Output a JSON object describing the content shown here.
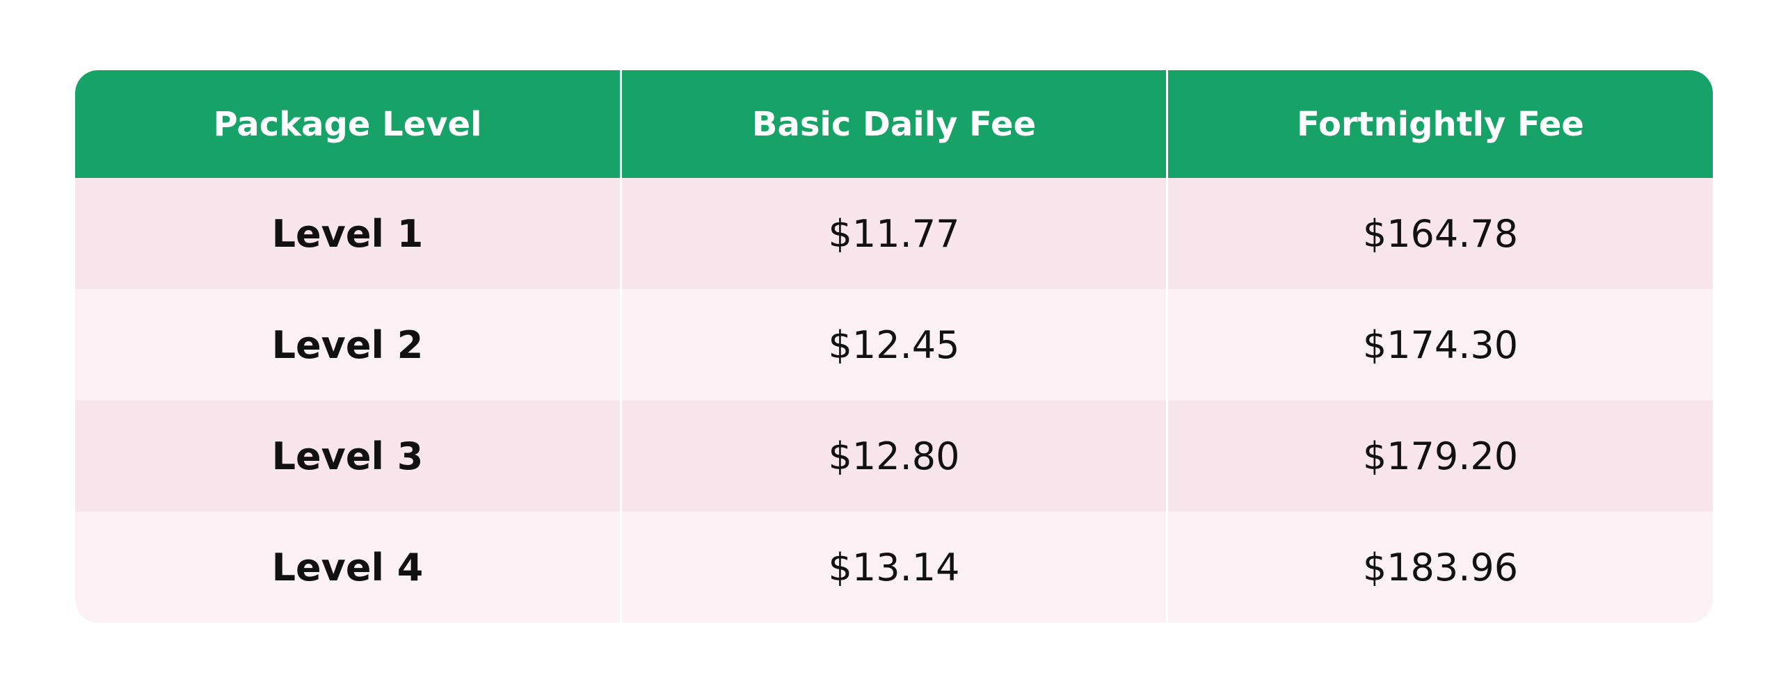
{
  "table": {
    "header": [
      "Package Level",
      "Basic Daily Fee",
      "Fortnightly Fee"
    ],
    "rows": [
      [
        "Level 1",
        "$11.77",
        "$164.78"
      ],
      [
        "Level 2",
        "$12.45",
        "$174.30"
      ],
      [
        "Level 3",
        "$12.80",
        "$179.20"
      ],
      [
        "Level 4",
        "$13.14",
        "$183.96"
      ]
    ]
  }
}
